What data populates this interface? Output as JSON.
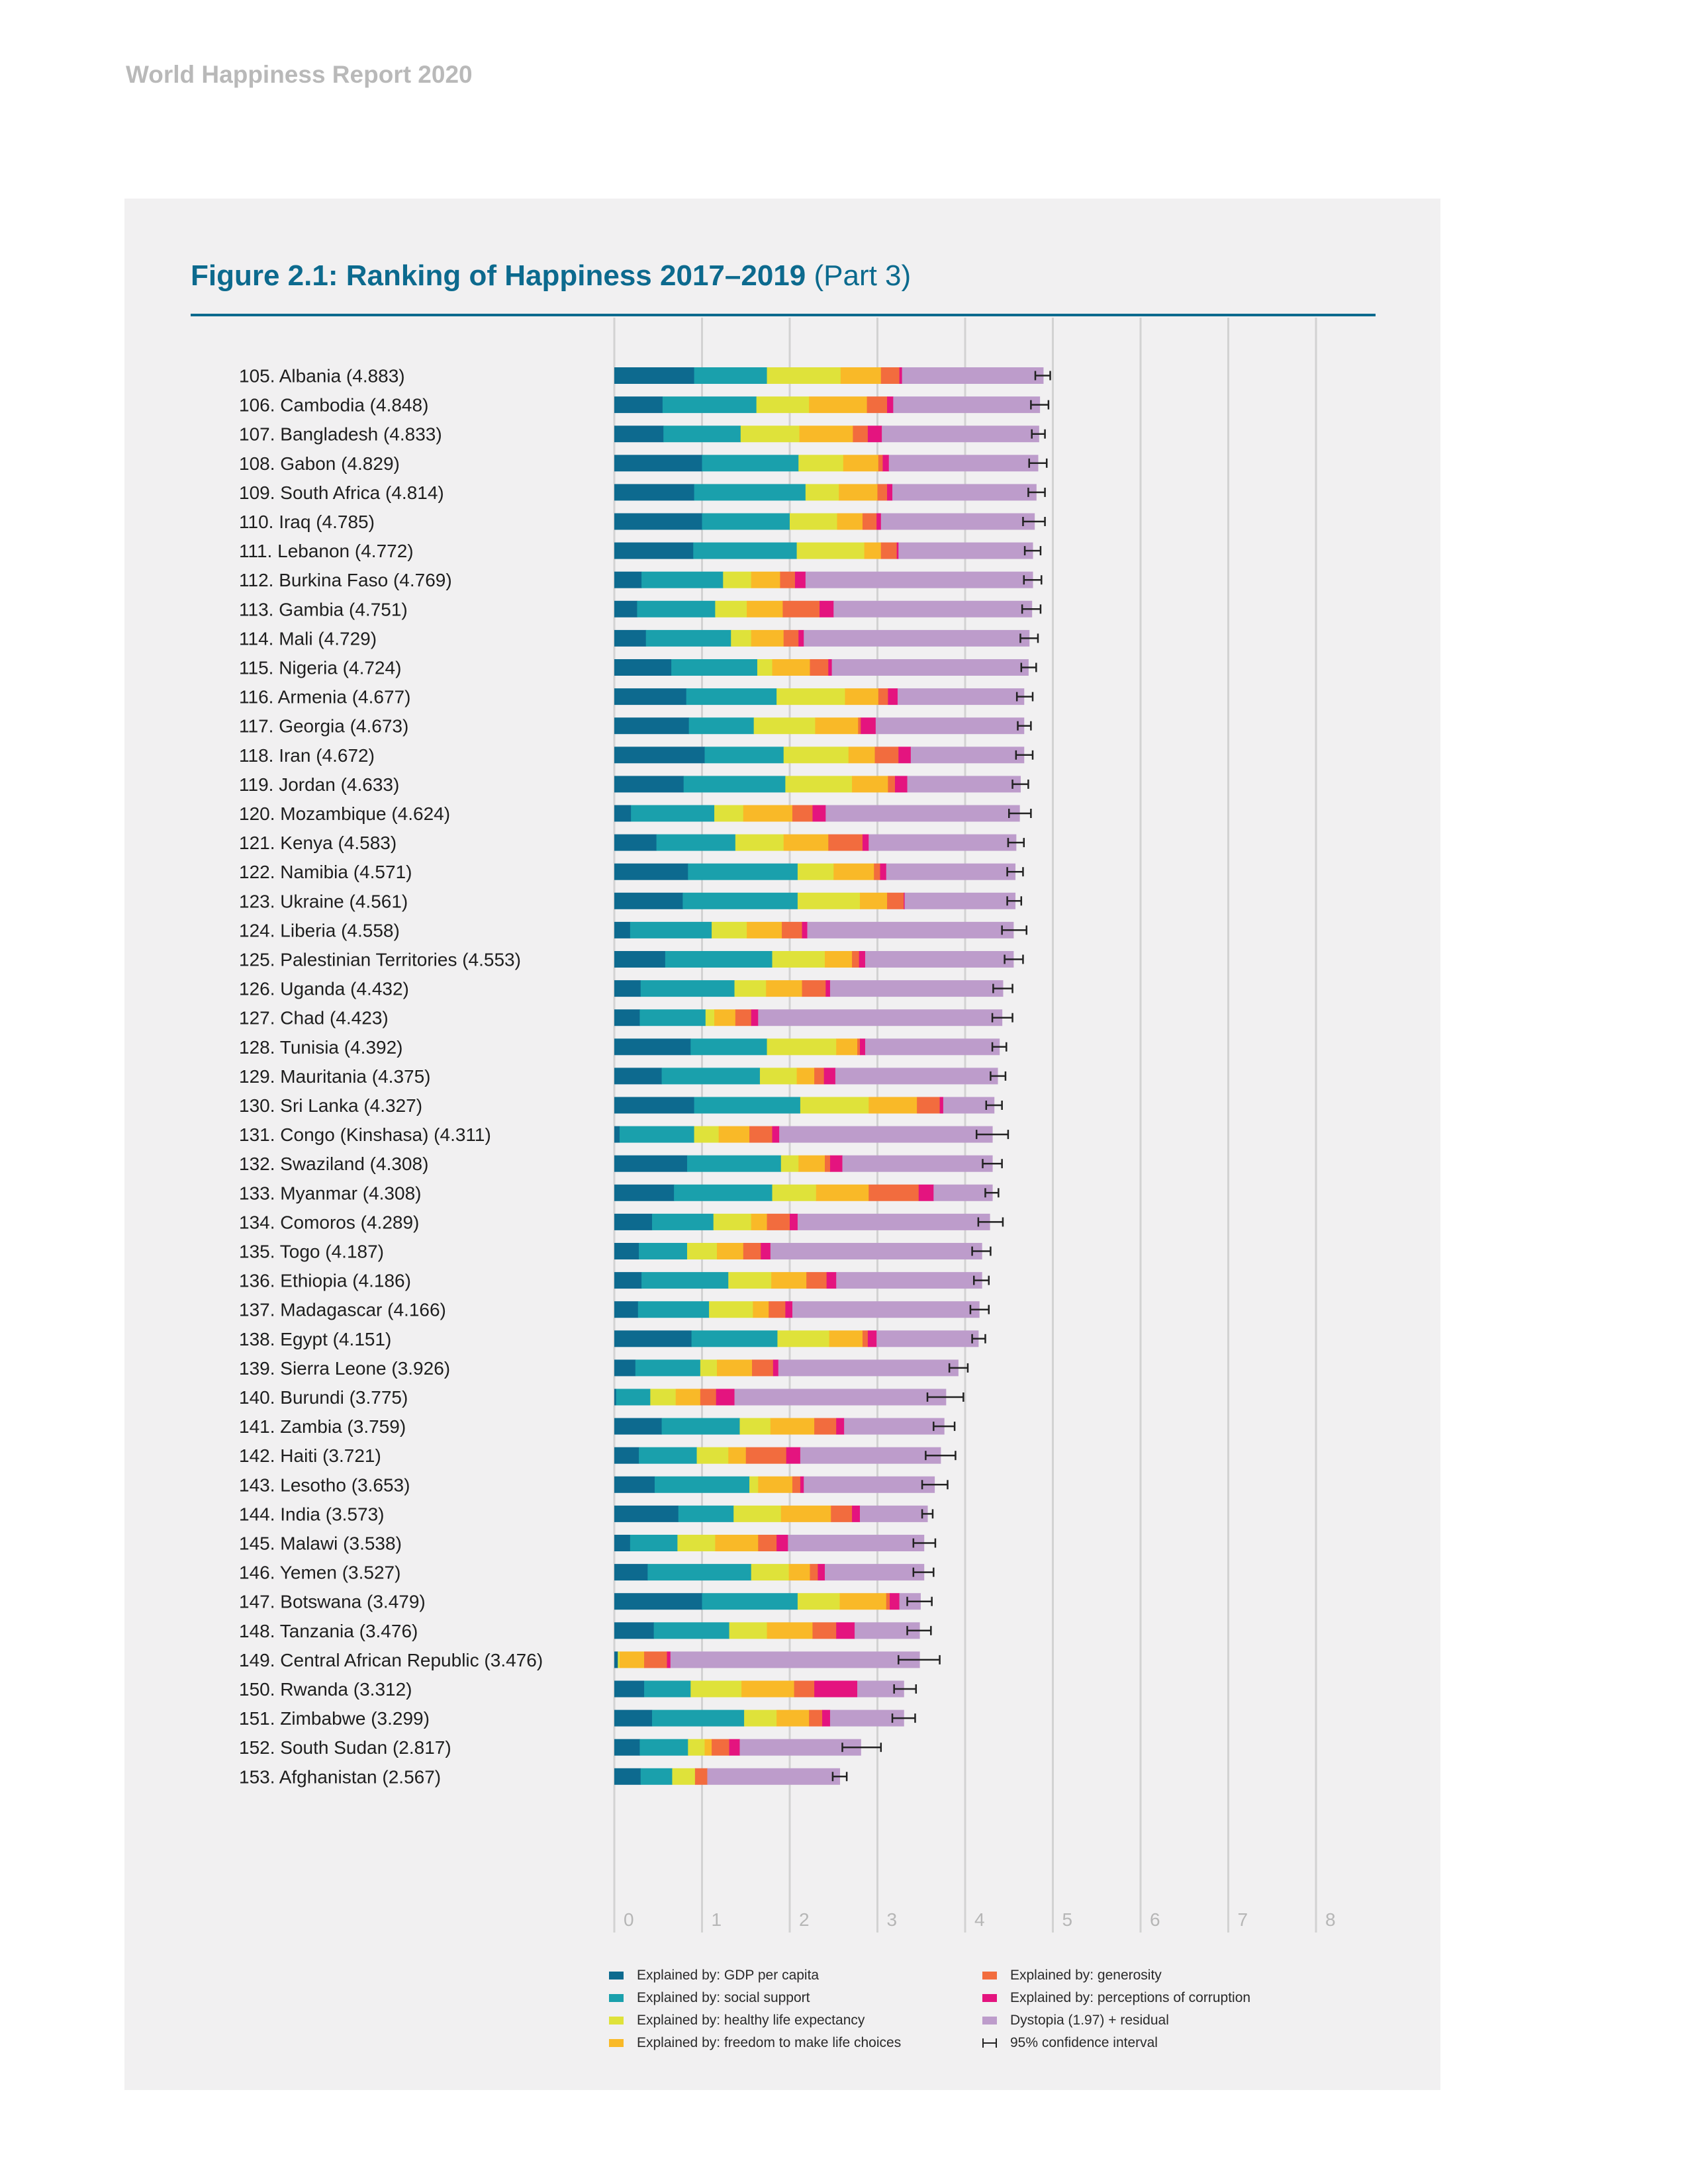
{
  "header": {
    "report_title": "World Happiness Report 2020"
  },
  "figure": {
    "title_bold": "Figure 2.1: Ranking of Happiness 2017–2019",
    "title_part": "(Part 3)"
  },
  "chart_data": {
    "type": "bar",
    "orientation": "horizontal",
    "stacked": true,
    "xlim": [
      0,
      8
    ],
    "x_ticks": [
      "0",
      "1",
      "2",
      "3",
      "4",
      "5",
      "6",
      "7",
      "8"
    ],
    "grid": true,
    "legend_position": "bottom",
    "series": [
      {
        "name": "Explained by: GDP per capita",
        "color": "#0d6a8f"
      },
      {
        "name": "Explained by: social support",
        "color": "#1aa0ac"
      },
      {
        "name": "Explained by: healthy life expectancy",
        "color": "#dfe23a"
      },
      {
        "name": "Explained by: freedom to make life choices",
        "color": "#f9b928"
      },
      {
        "name": "Explained by: generosity",
        "color": "#f26c3e"
      },
      {
        "name": "Explained by: perceptions of corruption",
        "color": "#e4147f"
      },
      {
        "name": "Dystopia (1.97) + residual",
        "color": "#bd9ccb"
      }
    ],
    "ci_legend": "95% confidence interval",
    "countries": [
      {
        "label": "105.  Albania (4.883)",
        "score": 4.883,
        "ci": [
          4.8,
          4.97
        ],
        "values": [
          0.91,
          0.83,
          0.84,
          0.46,
          0.21,
          0.03,
          1.61
        ]
      },
      {
        "label": "106.  Cambodia (4.848)",
        "score": 4.848,
        "ci": [
          4.75,
          4.95
        ],
        "values": [
          0.55,
          1.07,
          0.6,
          0.66,
          0.23,
          0.07,
          1.67
        ]
      },
      {
        "label": "107.  Bangladesh (4.833)",
        "score": 4.833,
        "ci": [
          4.76,
          4.91
        ],
        "values": [
          0.56,
          0.88,
          0.67,
          0.61,
          0.17,
          0.16,
          1.79
        ]
      },
      {
        "label": "108.  Gabon (4.829)",
        "score": 4.829,
        "ci": [
          4.73,
          4.93
        ],
        "values": [
          1.0,
          1.1,
          0.51,
          0.4,
          0.05,
          0.07,
          1.7
        ]
      },
      {
        "label": "109.  South Africa (4.814)",
        "score": 4.814,
        "ci": [
          4.72,
          4.91
        ],
        "values": [
          0.91,
          1.27,
          0.38,
          0.44,
          0.11,
          0.06,
          1.64
        ]
      },
      {
        "label": "110.  Iraq (4.785)",
        "score": 4.785,
        "ci": [
          4.66,
          4.91
        ],
        "values": [
          1.0,
          1.0,
          0.54,
          0.29,
          0.16,
          0.05,
          1.75
        ]
      },
      {
        "label": "111.  Lebanon (4.772)",
        "score": 4.772,
        "ci": [
          4.68,
          4.86
        ],
        "values": [
          0.9,
          1.18,
          0.77,
          0.19,
          0.18,
          0.02,
          1.53
        ]
      },
      {
        "label": "112.  Burkina Faso (4.769)",
        "score": 4.769,
        "ci": [
          4.67,
          4.87
        ],
        "values": [
          0.31,
          0.93,
          0.32,
          0.33,
          0.17,
          0.12,
          2.59
        ]
      },
      {
        "label": "113.  Gambia (4.751)",
        "score": 4.751,
        "ci": [
          4.65,
          4.86
        ],
        "values": [
          0.26,
          0.89,
          0.36,
          0.41,
          0.42,
          0.16,
          2.26
        ]
      },
      {
        "label": "114.  Mali (4.729)",
        "score": 4.729,
        "ci": [
          4.63,
          4.83
        ],
        "values": [
          0.36,
          0.97,
          0.23,
          0.37,
          0.17,
          0.06,
          2.57
        ]
      },
      {
        "label": "115.  Nigeria (4.724)",
        "score": 4.724,
        "ci": [
          4.64,
          4.81
        ],
        "values": [
          0.65,
          0.98,
          0.17,
          0.43,
          0.21,
          0.04,
          2.24
        ]
      },
      {
        "label": "116.  Armenia (4.677)",
        "score": 4.677,
        "ci": [
          4.59,
          4.77
        ],
        "values": [
          0.82,
          1.03,
          0.78,
          0.38,
          0.11,
          0.11,
          1.44
        ]
      },
      {
        "label": "117.  Georgia (4.673)",
        "score": 4.673,
        "ci": [
          4.6,
          4.75
        ],
        "values": [
          0.85,
          0.74,
          0.7,
          0.49,
          0.03,
          0.17,
          1.69
        ]
      },
      {
        "label": "118.  Iran (4.672)",
        "score": 4.672,
        "ci": [
          4.58,
          4.77
        ],
        "values": [
          1.03,
          0.9,
          0.74,
          0.3,
          0.27,
          0.14,
          1.29
        ]
      },
      {
        "label": "119.  Jordan (4.633)",
        "score": 4.633,
        "ci": [
          4.54,
          4.72
        ],
        "values": [
          0.79,
          1.16,
          0.76,
          0.41,
          0.08,
          0.14,
          1.29
        ]
      },
      {
        "label": "120.  Mozambique (4.624)",
        "score": 4.624,
        "ci": [
          4.5,
          4.75
        ],
        "values": [
          0.19,
          0.95,
          0.33,
          0.56,
          0.23,
          0.15,
          2.21
        ]
      },
      {
        "label": "121.  Kenya (4.583)",
        "score": 4.583,
        "ci": [
          4.49,
          4.67
        ],
        "values": [
          0.48,
          0.9,
          0.55,
          0.51,
          0.39,
          0.07,
          1.68
        ]
      },
      {
        "label": "122.  Namibia (4.571)",
        "score": 4.571,
        "ci": [
          4.48,
          4.66
        ],
        "values": [
          0.84,
          1.25,
          0.41,
          0.46,
          0.07,
          0.07,
          1.47
        ]
      },
      {
        "label": "123.  Ukraine (4.561)",
        "score": 4.561,
        "ci": [
          4.48,
          4.64
        ],
        "values": [
          0.78,
          1.31,
          0.71,
          0.31,
          0.19,
          0.01,
          1.26
        ]
      },
      {
        "label": "124.  Liberia (4.558)",
        "score": 4.558,
        "ci": [
          4.42,
          4.7
        ],
        "values": [
          0.18,
          0.93,
          0.4,
          0.4,
          0.23,
          0.06,
          2.35
        ]
      },
      {
        "label": "125.  Palestinian Territories (4.553)",
        "score": 4.553,
        "ci": [
          4.45,
          4.66
        ],
        "values": [
          0.58,
          1.22,
          0.6,
          0.31,
          0.08,
          0.07,
          1.69
        ]
      },
      {
        "label": "126.  Uganda (4.432)",
        "score": 4.432,
        "ci": [
          4.32,
          4.54
        ],
        "values": [
          0.3,
          1.07,
          0.36,
          0.41,
          0.27,
          0.05,
          1.97
        ]
      },
      {
        "label": "127.  Chad (4.423)",
        "score": 4.423,
        "ci": [
          4.31,
          4.54
        ],
        "values": [
          0.29,
          0.75,
          0.1,
          0.24,
          0.18,
          0.08,
          2.78
        ]
      },
      {
        "label": "128.  Tunisia (4.392)",
        "score": 4.392,
        "ci": [
          4.31,
          4.47
        ],
        "values": [
          0.87,
          0.87,
          0.79,
          0.24,
          0.03,
          0.06,
          1.53
        ]
      },
      {
        "label": "129.  Mauritania (4.375)",
        "score": 4.375,
        "ci": [
          4.29,
          4.46
        ],
        "values": [
          0.54,
          1.12,
          0.42,
          0.2,
          0.11,
          0.13,
          1.85
        ]
      },
      {
        "label": "130.  Sri Lanka (4.327)",
        "score": 4.327,
        "ci": [
          4.24,
          4.42
        ],
        "values": [
          0.91,
          1.21,
          0.78,
          0.55,
          0.26,
          0.04,
          0.58
        ]
      },
      {
        "label": "131.  Congo (Kinshasa) (4.311)",
        "score": 4.311,
        "ci": [
          4.13,
          4.49
        ],
        "values": [
          0.06,
          0.85,
          0.28,
          0.35,
          0.26,
          0.08,
          2.43
        ]
      },
      {
        "label": "132.  Swaziland (4.308)",
        "score": 4.308,
        "ci": [
          4.2,
          4.42
        ],
        "values": [
          0.83,
          1.07,
          0.2,
          0.3,
          0.06,
          0.14,
          1.71
        ]
      },
      {
        "label": "133.  Myanmar (4.308)",
        "score": 4.308,
        "ci": [
          4.23,
          4.38
        ],
        "values": [
          0.68,
          1.12,
          0.5,
          0.6,
          0.57,
          0.17,
          0.67
        ]
      },
      {
        "label": "134.  Comoros (4.289)",
        "score": 4.289,
        "ci": [
          4.15,
          4.43
        ],
        "values": [
          0.43,
          0.7,
          0.43,
          0.18,
          0.26,
          0.09,
          2.19
        ]
      },
      {
        "label": "135.  Togo (4.187)",
        "score": 4.187,
        "ci": [
          4.08,
          4.29
        ],
        "values": [
          0.28,
          0.55,
          0.34,
          0.3,
          0.2,
          0.11,
          2.41
        ]
      },
      {
        "label": "136.  Ethiopia (4.186)",
        "score": 4.186,
        "ci": [
          4.1,
          4.27
        ],
        "values": [
          0.31,
          0.99,
          0.49,
          0.4,
          0.23,
          0.11,
          1.66
        ]
      },
      {
        "label": "137.  Madagascar (4.166)",
        "score": 4.166,
        "ci": [
          4.06,
          4.27
        ],
        "values": [
          0.27,
          0.81,
          0.5,
          0.18,
          0.19,
          0.08,
          2.13
        ]
      },
      {
        "label": "138.  Egypt (4.151)",
        "score": 4.151,
        "ci": [
          4.08,
          4.23
        ],
        "values": [
          0.88,
          0.98,
          0.59,
          0.38,
          0.06,
          0.1,
          1.16
        ]
      },
      {
        "label": "139.  Sierra Leone (3.926)",
        "score": 3.926,
        "ci": [
          3.82,
          4.03
        ],
        "values": [
          0.24,
          0.74,
          0.19,
          0.4,
          0.24,
          0.06,
          2.05
        ]
      },
      {
        "label": "140.  Burundi (3.775)",
        "score": 3.775,
        "ci": [
          3.57,
          3.98
        ],
        "values": [
          0.02,
          0.39,
          0.29,
          0.28,
          0.18,
          0.21,
          2.41
        ]
      },
      {
        "label": "141.  Zambia (3.759)",
        "score": 3.759,
        "ci": [
          3.64,
          3.88
        ],
        "values": [
          0.54,
          0.89,
          0.35,
          0.5,
          0.25,
          0.09,
          1.14
        ]
      },
      {
        "label": "142.  Haiti (3.721)",
        "score": 3.721,
        "ci": [
          3.55,
          3.89
        ],
        "values": [
          0.28,
          0.66,
          0.36,
          0.2,
          0.46,
          0.16,
          1.6
        ]
      },
      {
        "label": "143.  Lesotho (3.653)",
        "score": 3.653,
        "ci": [
          3.51,
          3.8
        ],
        "values": [
          0.46,
          1.08,
          0.1,
          0.39,
          0.09,
          0.04,
          1.49
        ]
      },
      {
        "label": "144.  India (3.573)",
        "score": 3.573,
        "ci": [
          3.51,
          3.63
        ],
        "values": [
          0.73,
          0.63,
          0.54,
          0.57,
          0.24,
          0.09,
          0.77
        ]
      },
      {
        "label": "145.  Malawi (3.538)",
        "score": 3.538,
        "ci": [
          3.41,
          3.66
        ],
        "values": [
          0.18,
          0.54,
          0.43,
          0.49,
          0.21,
          0.13,
          1.55
        ]
      },
      {
        "label": "146.  Yemen (3.527)",
        "score": 3.527,
        "ci": [
          3.41,
          3.64
        ],
        "values": [
          0.38,
          1.18,
          0.43,
          0.24,
          0.09,
          0.08,
          1.13
        ]
      },
      {
        "label": "147.  Botswana (3.479)",
        "score": 3.479,
        "ci": [
          3.34,
          3.62
        ],
        "values": [
          1.0,
          1.09,
          0.48,
          0.53,
          0.04,
          0.11,
          0.24
        ]
      },
      {
        "label": "148.  Tanzania (3.476)",
        "score": 3.476,
        "ci": [
          3.34,
          3.61
        ],
        "values": [
          0.45,
          0.86,
          0.43,
          0.52,
          0.27,
          0.21,
          0.74
        ]
      },
      {
        "label": "149.  Central African Republic (3.476)",
        "score": 3.476,
        "ci": [
          3.24,
          3.71
        ],
        "values": [
          0.04,
          0.0,
          0.02,
          0.28,
          0.26,
          0.04,
          2.84
        ]
      },
      {
        "label": "150.  Rwanda (3.312)",
        "score": 3.312,
        "ci": [
          3.19,
          3.44
        ],
        "values": [
          0.34,
          0.53,
          0.58,
          0.6,
          0.23,
          0.49,
          0.53
        ]
      },
      {
        "label": "151.  Zimbabwe (3.299)",
        "score": 3.299,
        "ci": [
          3.17,
          3.43
        ],
        "values": [
          0.43,
          1.05,
          0.37,
          0.37,
          0.15,
          0.09,
          0.84
        ]
      },
      {
        "label": "152.  South Sudan (2.817)",
        "score": 2.817,
        "ci": [
          2.6,
          3.04
        ],
        "values": [
          0.29,
          0.55,
          0.19,
          0.08,
          0.2,
          0.12,
          1.38
        ]
      },
      {
        "label": "153.  Afghanistan (2.567)",
        "score": 2.567,
        "ci": [
          2.49,
          2.65
        ],
        "values": [
          0.3,
          0.36,
          0.26,
          0.0,
          0.14,
          0.0,
          1.51
        ]
      }
    ]
  }
}
